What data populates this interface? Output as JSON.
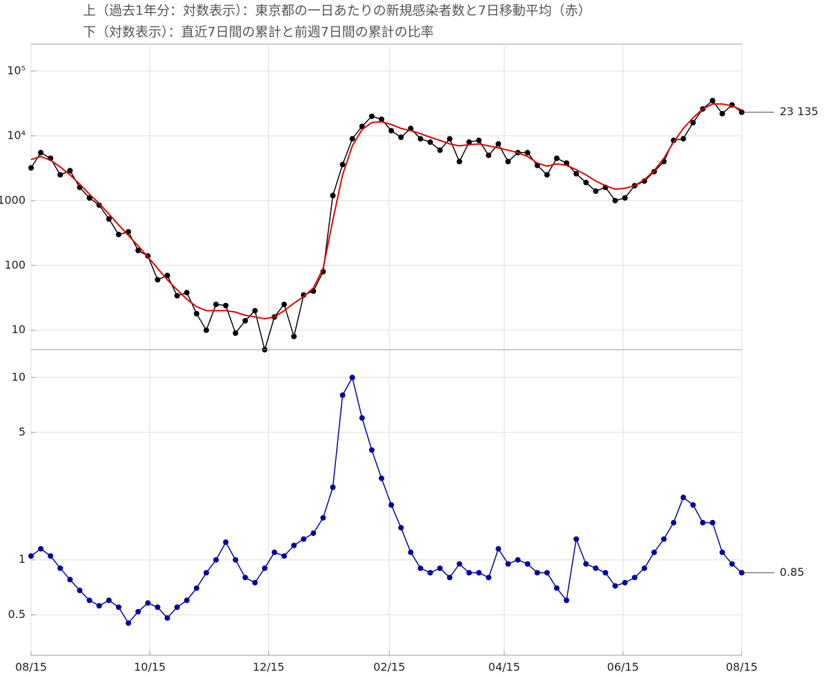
{
  "chart_data": [
    {
      "type": "line",
      "title": "上（過去1年分：対数表示）：東京都の一日あたりの新規感染者数と7日移動平均（赤）",
      "log_scale": true,
      "grid": true,
      "x": [
        0,
        5,
        10,
        15,
        20,
        25,
        30,
        35,
        40,
        45,
        50,
        55,
        60,
        65,
        70,
        75,
        80,
        85,
        90,
        95,
        100,
        105,
        110,
        115,
        120,
        125,
        130,
        135,
        140,
        145,
        150,
        155,
        160,
        165,
        170,
        175,
        180,
        185,
        190,
        195,
        200,
        205,
        210,
        215,
        220,
        225,
        230,
        235,
        240,
        245,
        250,
        255,
        260,
        265,
        270,
        275,
        280,
        285,
        290,
        295,
        300,
        305,
        310,
        315,
        320,
        325,
        330,
        335,
        340,
        345,
        350,
        355,
        360,
        365
      ],
      "xlim": [
        0,
        365
      ],
      "ylim": [
        5,
        260000
      ],
      "yticks": [
        10,
        100,
        1000,
        {
          "value": 10000,
          "label": "10⁴"
        },
        {
          "value": 100000,
          "label": "10⁵"
        }
      ],
      "series": [
        {
          "color": "#000000",
          "markers": true,
          "values": [
            3200,
            5500,
            4500,
            2500,
            2900,
            1600,
            1100,
            850,
            520,
            300,
            330,
            170,
            140,
            60,
            70,
            34,
            38,
            18,
            10,
            25,
            24,
            9,
            14,
            20,
            5,
            16,
            25,
            8,
            35,
            40,
            80,
            1200,
            3600,
            9000,
            14000,
            20000,
            18000,
            12000,
            9500,
            13000,
            9000,
            8000,
            6000,
            9000,
            4000,
            8000,
            8500,
            5000,
            7500,
            4000,
            5500,
            5500,
            3500,
            2500,
            4500,
            3800,
            2600,
            1900,
            1400,
            1600,
            1000,
            1100,
            1700,
            2000,
            2800,
            4000,
            8500,
            9000,
            16000,
            26000,
            35000,
            22000,
            30000,
            23135
          ]
        },
        {
          "color": "#e00000",
          "markers": false,
          "values": [
            4300,
            4800,
            4200,
            3300,
            2500,
            1800,
            1250,
            900,
            620,
            420,
            290,
            200,
            135,
            90,
            60,
            42,
            30,
            23,
            20,
            20,
            20,
            19,
            17,
            16,
            15,
            16,
            20,
            26,
            33,
            45,
            90,
            500,
            2500,
            7000,
            12500,
            16000,
            16500,
            15000,
            13000,
            12000,
            10800,
            9500,
            8500,
            7500,
            7000,
            7300,
            7500,
            7000,
            6500,
            6000,
            5500,
            4800,
            3800,
            3400,
            3700,
            3500,
            3000,
            2500,
            2000,
            1700,
            1500,
            1550,
            1700,
            2100,
            2900,
            4500,
            8000,
            13000,
            19000,
            26000,
            31000,
            31000,
            29000,
            25000
          ]
        }
      ],
      "annotations": [
        {
          "label": "23 135",
          "value": 23135
        }
      ]
    },
    {
      "type": "line",
      "title": "下（対数表示）：直近7日間の累計と前週7日間の累計の比率",
      "log_scale": true,
      "grid": true,
      "x": [
        0,
        5,
        10,
        15,
        20,
        25,
        30,
        35,
        40,
        45,
        50,
        55,
        60,
        65,
        70,
        75,
        80,
        85,
        90,
        95,
        100,
        105,
        110,
        115,
        120,
        125,
        130,
        135,
        140,
        145,
        150,
        155,
        160,
        165,
        170,
        175,
        180,
        185,
        190,
        195,
        200,
        205,
        210,
        215,
        220,
        225,
        230,
        235,
        240,
        245,
        250,
        255,
        260,
        265,
        270,
        275,
        280,
        285,
        290,
        295,
        300,
        305,
        310,
        315,
        320,
        325,
        330,
        335,
        340,
        345,
        350,
        355,
        360,
        365
      ],
      "xlim": [
        0,
        365
      ],
      "xticks": [
        {
          "value": 0,
          "label": "08/15"
        },
        {
          "value": 61,
          "label": "10/15"
        },
        {
          "value": 122,
          "label": "12/15"
        },
        {
          "value": 184,
          "label": "02/15"
        },
        {
          "value": 243,
          "label": "04/15"
        },
        {
          "value": 304,
          "label": "06/15"
        },
        {
          "value": 365,
          "label": "08/15"
        }
      ],
      "ylim": [
        0.3,
        14.2
      ],
      "yticks": [
        0.5,
        1,
        5,
        10
      ],
      "series": [
        {
          "color": "#0000a0",
          "markers": true,
          "values": [
            1.05,
            1.15,
            1.05,
            0.9,
            0.78,
            0.68,
            0.6,
            0.56,
            0.6,
            0.55,
            0.45,
            0.52,
            0.58,
            0.55,
            0.48,
            0.55,
            0.6,
            0.7,
            0.85,
            1.0,
            1.25,
            1.0,
            0.8,
            0.75,
            0.9,
            1.1,
            1.05,
            1.2,
            1.3,
            1.4,
            1.7,
            2.5,
            8,
            10,
            6,
            4,
            2.8,
            2.0,
            1.5,
            1.1,
            0.9,
            0.85,
            0.9,
            0.8,
            0.95,
            0.85,
            0.85,
            0.8,
            1.15,
            0.95,
            1.0,
            0.95,
            0.85,
            0.85,
            0.7,
            0.6,
            1.3,
            0.95,
            0.9,
            0.85,
            0.72,
            0.75,
            0.8,
            0.9,
            1.1,
            1.3,
            1.6,
            2.2,
            2.0,
            1.6,
            1.6,
            1.1,
            0.95,
            0.85
          ]
        }
      ],
      "annotations": [
        {
          "label": "0.85",
          "value": 0.85
        }
      ]
    }
  ]
}
